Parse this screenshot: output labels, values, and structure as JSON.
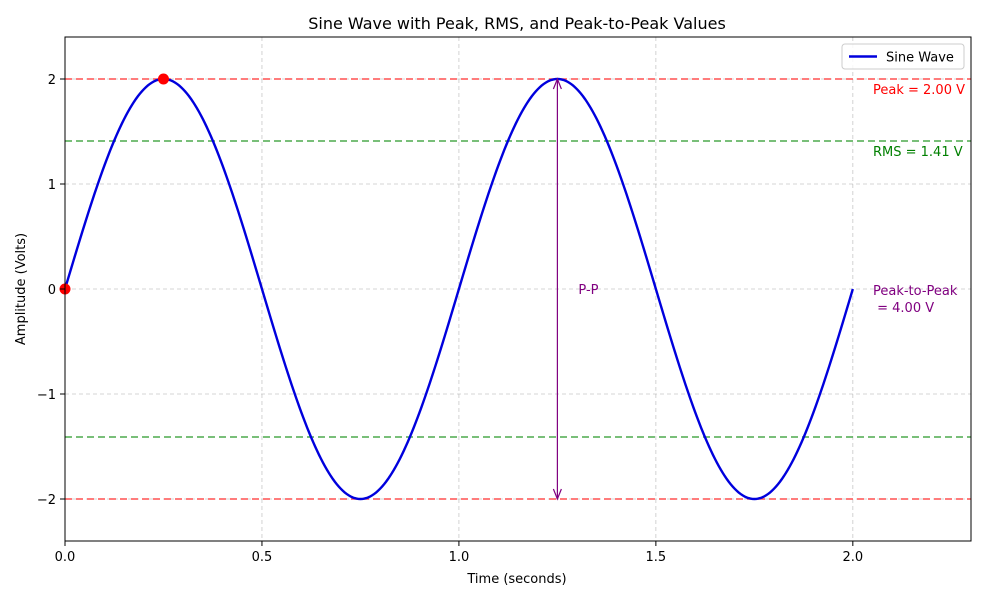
{
  "chart_data": {
    "type": "line",
    "title": "Sine Wave with Peak, RMS, and Peak-to-Peak Values",
    "xlabel": "Time (seconds)",
    "ylabel": "Amplitude (Volts)",
    "xlim": [
      0,
      2.3
    ],
    "ylim": [
      -2.4,
      2.4
    ],
    "x_ticks": [
      0,
      0.5,
      1.0,
      1.5,
      2.0
    ],
    "x_tick_labels": [
      "0.0",
      "0.5",
      "1.0",
      "1.5",
      "2.0"
    ],
    "y_ticks": [
      -2,
      -1,
      0,
      1,
      2
    ],
    "y_tick_labels": [
      "−2",
      "−1",
      "0",
      "1",
      "2"
    ],
    "grid": true,
    "legend_position": "top-right",
    "series": [
      {
        "name": "Sine Wave",
        "color": "#0000dd",
        "function": "sine",
        "amplitude": 2.0,
        "frequency_hz": 1.0,
        "x_range": [
          0,
          2.0
        ]
      }
    ],
    "markers": [
      {
        "x": 0.0,
        "y": 0.0,
        "color": "#ff0000"
      },
      {
        "x": 0.25,
        "y": 2.0,
        "color": "#ff0000"
      }
    ],
    "reference_lines": [
      {
        "y": 2.0,
        "color": "#ff5050"
      },
      {
        "y": -2.0,
        "color": "#ff5050"
      },
      {
        "y": 1.41,
        "color": "#4daa4d"
      },
      {
        "y": -1.41,
        "color": "#4daa4d"
      }
    ],
    "peak_to_peak_arrow": {
      "x": 1.25,
      "y_from": -2.0,
      "y_to": 2.0,
      "color": "#800080",
      "label": "P-P"
    },
    "annotations": [
      {
        "id": "peak",
        "text": "Peak = 2.00 V",
        "color": "#ff0000"
      },
      {
        "id": "rms",
        "text": "RMS = 1.41 V",
        "color": "#008000"
      },
      {
        "id": "p2p",
        "text_lines": [
          "Peak-to-Peak",
          " = 4.00 V"
        ],
        "color": "#800080"
      }
    ]
  }
}
